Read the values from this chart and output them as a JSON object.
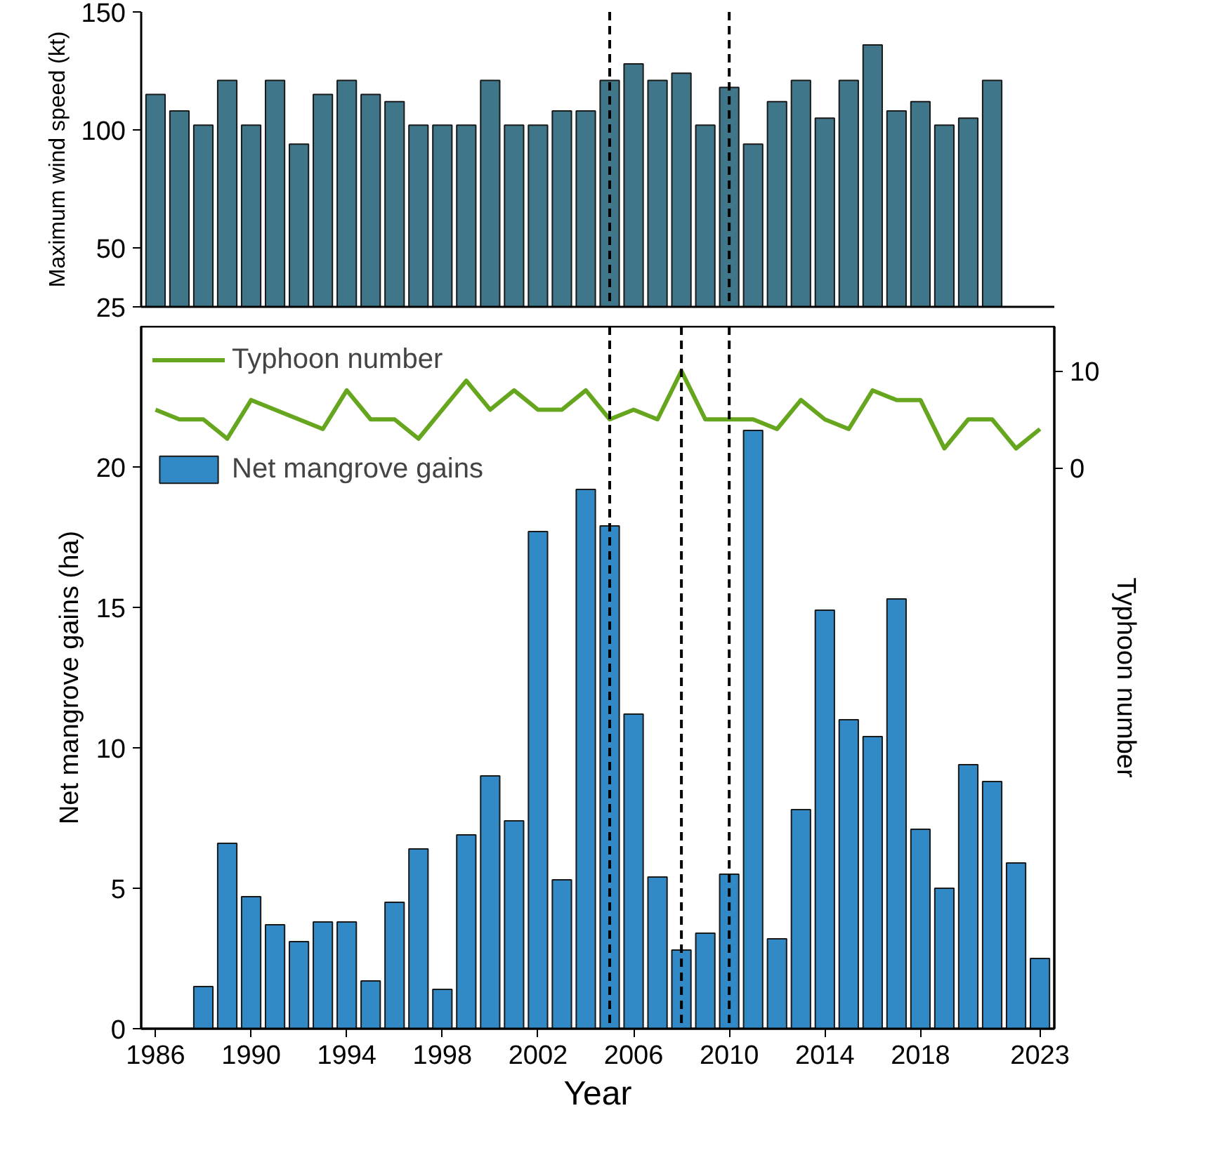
{
  "chart_data": [
    {
      "type": "bar",
      "ylabel": "Maximum wind speed (kt)",
      "xlim": [
        1985.4,
        2023.6
      ],
      "ylim": [
        25,
        150
      ],
      "yticks": [
        25,
        50,
        100,
        150
      ],
      "tick_labels": "y",
      "ref_lines": [
        {
          "axis": "x",
          "value": 2005,
          "line_style": "dashed",
          "color": "#000000"
        },
        {
          "axis": "x",
          "value": 2010,
          "line_style": "dashed",
          "color": "#000000"
        }
      ],
      "series": [
        {
          "color": "#3f7689",
          "x": [
            1986,
            1987,
            1988,
            1989,
            1990,
            1991,
            1992,
            1993,
            1994,
            1995,
            1996,
            1997,
            1998,
            1999,
            2000,
            2001,
            2002,
            2003,
            2004,
            2005,
            2006,
            2007,
            2008,
            2009,
            2010,
            2011,
            2012,
            2013,
            2014,
            2015,
            2016,
            2017,
            2018,
            2019,
            2020,
            2021
          ],
          "values": [
            115,
            108,
            102,
            121,
            102,
            121,
            94,
            115,
            121,
            115,
            112,
            102,
            102,
            102,
            121,
            102,
            102,
            108,
            108,
            121,
            128,
            121,
            124,
            102,
            118,
            94,
            112,
            121,
            105,
            121,
            136,
            108,
            112,
            102,
            105,
            121
          ]
        }
      ]
    },
    {
      "type": "bar",
      "xlabel": "Year",
      "ylabel": "Net mangrove gains (ha)",
      "y2label": "Typhoon number",
      "xlim": [
        1985.4,
        2023.6
      ],
      "xticks": [
        1986,
        1990,
        1994,
        1998,
        2002,
        2006,
        2010,
        2014,
        2018,
        2023
      ],
      "ylim": [
        0,
        25
      ],
      "yticks": [
        0,
        5,
        10,
        15,
        20
      ],
      "y2lim": [
        -58.0,
        14.6
      ],
      "y2ticks": [
        0,
        10
      ],
      "legend": "top left",
      "ref_lines": [
        {
          "axis": "x",
          "value": 2005,
          "line_style": "dashed",
          "color": "#000000"
        },
        {
          "axis": "x",
          "value": 2008,
          "line_style": "dashed",
          "color": "#000000"
        },
        {
          "axis": "x",
          "value": 2010,
          "line_style": "dashed",
          "color": "#000000"
        }
      ],
      "series": [
        {
          "name": "Net mangrove gains",
          "color": "#318ac5",
          "x": [
            1988,
            1989,
            1990,
            1991,
            1992,
            1993,
            1994,
            1995,
            1996,
            1997,
            1998,
            1999,
            2000,
            2001,
            2002,
            2003,
            2004,
            2005,
            2006,
            2007,
            2008,
            2009,
            2010,
            2011,
            2012,
            2013,
            2014,
            2015,
            2016,
            2017,
            2018,
            2019,
            2020,
            2021,
            2022,
            2023
          ],
          "values": [
            1.5,
            6.6,
            4.7,
            3.7,
            3.1,
            3.8,
            3.8,
            1.7,
            4.5,
            6.4,
            1.4,
            6.9,
            9.0,
            7.4,
            17.7,
            5.3,
            19.2,
            17.9,
            11.2,
            5.4,
            2.8,
            3.4,
            5.5,
            21.3,
            3.2,
            7.8,
            14.9,
            11.0,
            10.4,
            15.3,
            7.1,
            5.0,
            9.4,
            8.8,
            5.9,
            2.5
          ]
        },
        {
          "type": "line",
          "name": "Typhoon number",
          "axis": "y2",
          "color": "#66a61e",
          "x": [
            1986,
            1987,
            1988,
            1989,
            1990,
            1991,
            1992,
            1993,
            1994,
            1995,
            1996,
            1997,
            1998,
            1999,
            2000,
            2001,
            2002,
            2003,
            2004,
            2005,
            2006,
            2007,
            2008,
            2009,
            2010,
            2011,
            2012,
            2013,
            2014,
            2015,
            2016,
            2017,
            2018,
            2019,
            2020,
            2021,
            2022,
            2023
          ],
          "values": [
            6,
            5,
            5,
            3,
            7,
            6,
            5,
            4,
            8,
            5,
            5,
            3,
            6,
            9,
            6,
            8,
            6,
            6,
            8,
            5,
            6,
            5,
            10,
            5,
            5,
            5,
            4,
            7,
            5,
            4,
            8,
            7,
            7,
            2,
            5,
            5,
            2,
            4
          ]
        }
      ]
    }
  ]
}
